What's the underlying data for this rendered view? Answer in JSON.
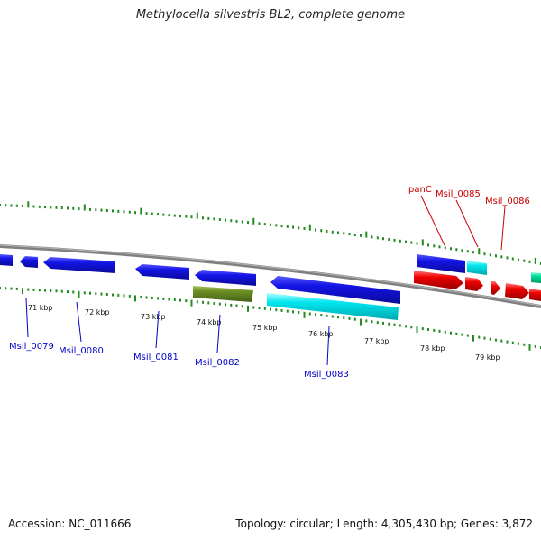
{
  "title": "Methylocella silvestris BL2, complete genome",
  "footer": {
    "accession": "Accession: NC_011666",
    "topology": "Topology: circular; Length: 4,305,430 bp; Genes: 3,872"
  },
  "kbp_labels": [
    "71 kbp",
    "72 kbp",
    "73 kbp",
    "74 kbp",
    "75 kbp",
    "76 kbp",
    "77 kbp",
    "78 kbp",
    "79 kbp"
  ],
  "gene_labels_minus": [
    "Msil_0079",
    "Msil_0080",
    "Msil_0081",
    "Msil_0082",
    "Msil_0083"
  ],
  "gene_labels_plus": [
    "panC",
    "Msil_0085",
    "Msil_0086"
  ],
  "colors": {
    "backbone": "#808080",
    "tick": "#228b22",
    "gene_blue": "#1414e6",
    "gene_cyan": "#00e5ee",
    "gene_olive": "#6b8e23",
    "gene_red": "#ee0000",
    "gene_green": "#00dd99",
    "label_minus": "#0000cc",
    "label_plus": "#cc0000"
  }
}
